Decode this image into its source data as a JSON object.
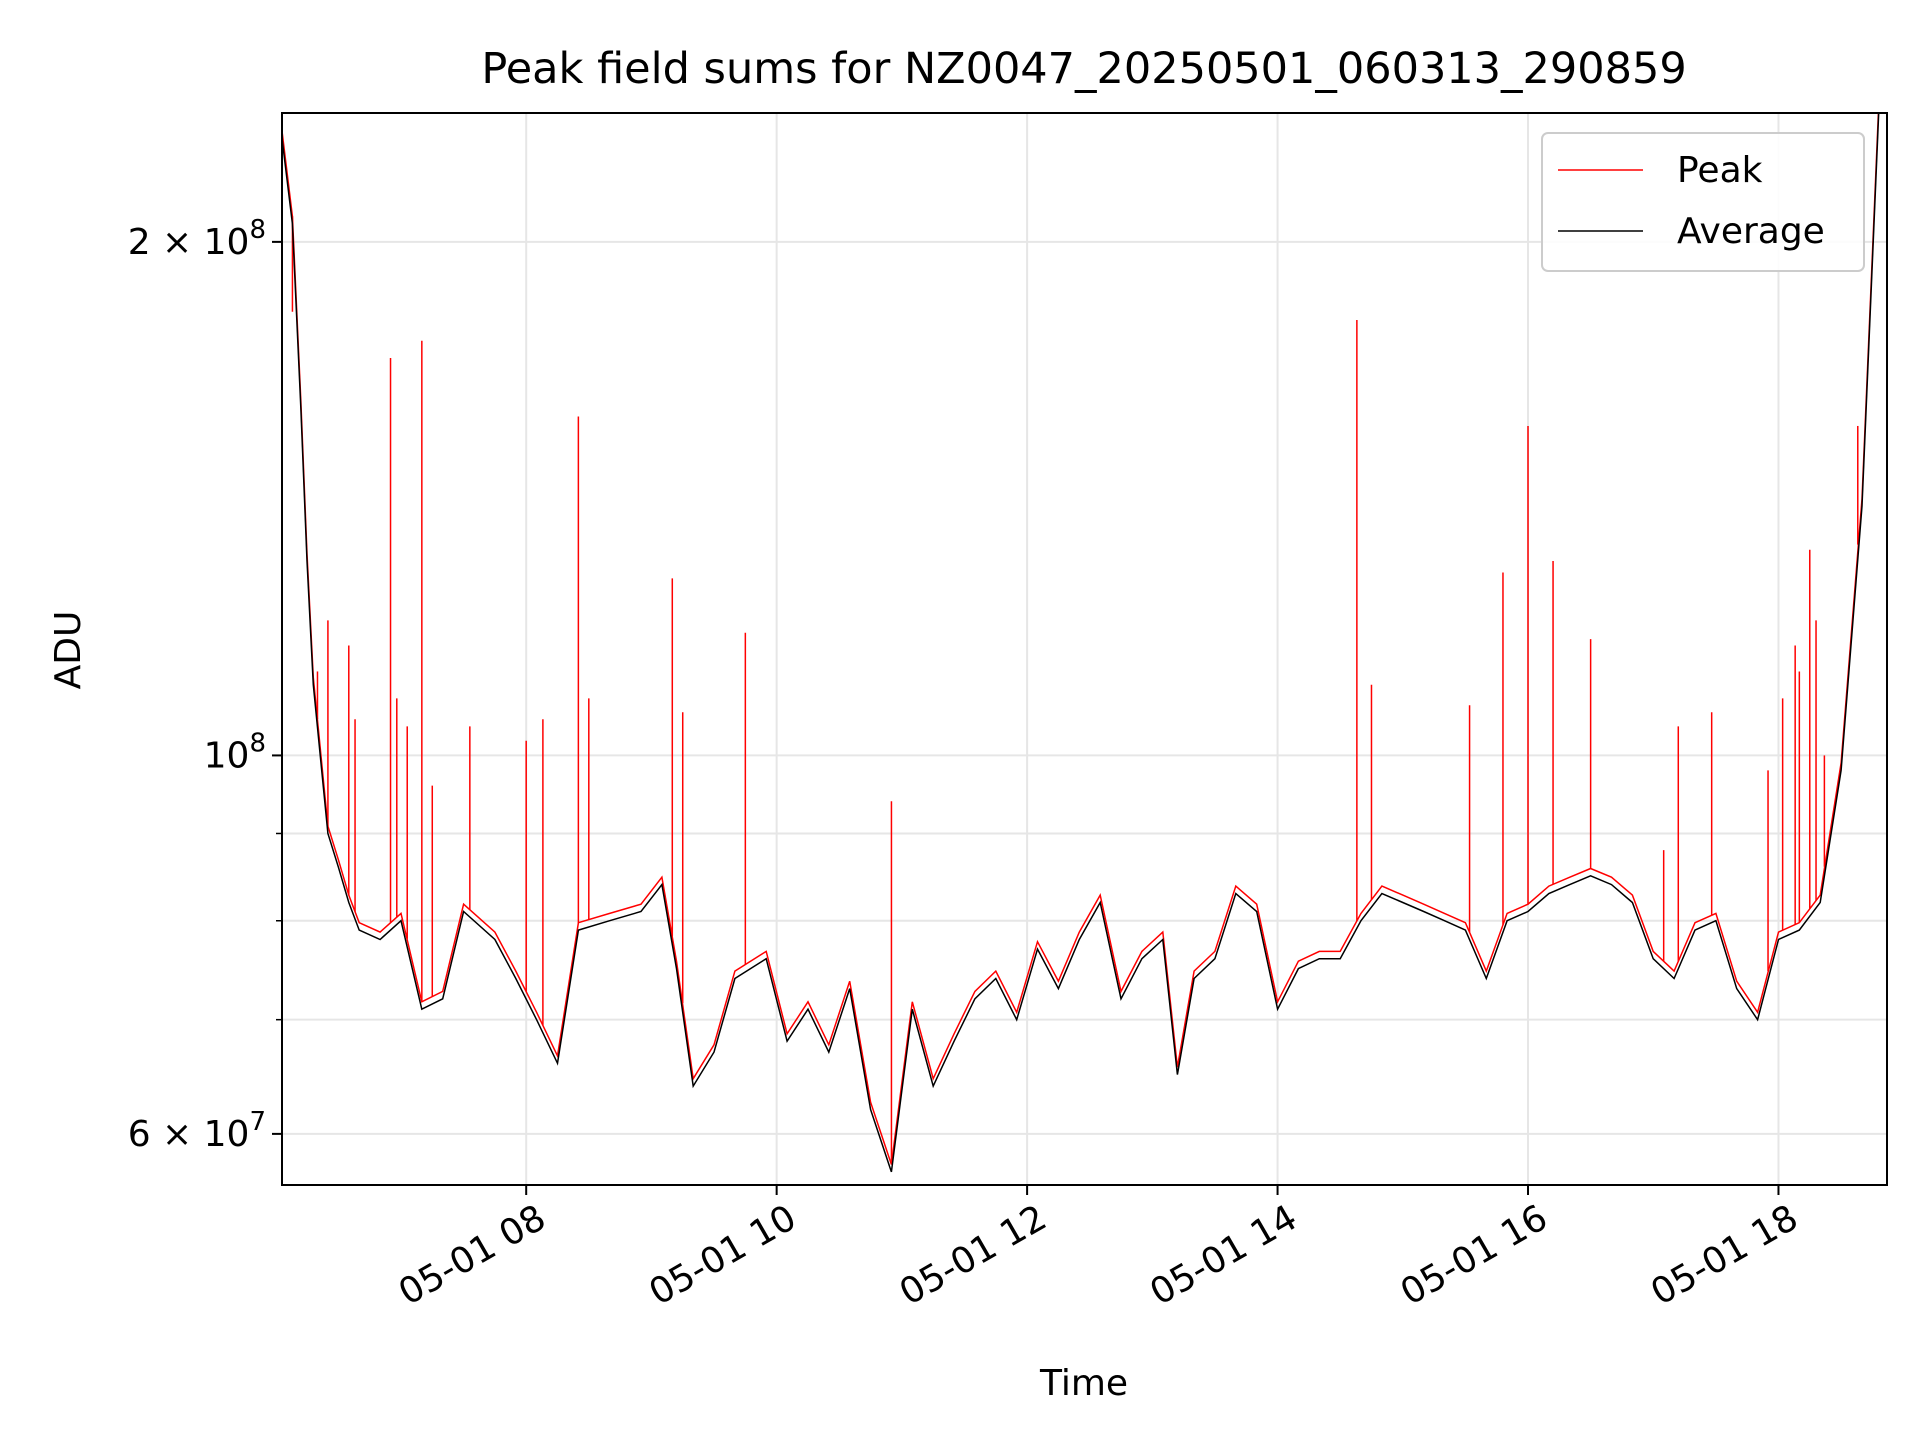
{
  "chart_data": {
    "type": "line",
    "title": "Peak field sums for NZ0047_20250501_060313_290859",
    "xlabel": "Time",
    "ylabel": "ADU",
    "yscale": "log",
    "xlim": [
      "2025-05-01 06:03",
      "2025-05-01 18:52"
    ],
    "ylim": [
      56000000,
      238000000
    ],
    "x_ticks": [
      {
        "value": "2025-05-01 08:00",
        "label": "05-01 08"
      },
      {
        "value": "2025-05-01 10:00",
        "label": "05-01 10"
      },
      {
        "value": "2025-05-01 12:00",
        "label": "05-01 12"
      },
      {
        "value": "2025-05-01 14:00",
        "label": "05-01 14"
      },
      {
        "value": "2025-05-01 16:00",
        "label": "05-01 16"
      },
      {
        "value": "2025-05-01 18:00",
        "label": "05-01 18"
      }
    ],
    "y_major_ticks": [
      {
        "value": 60000000,
        "base": "6 × 10",
        "exp": "7"
      },
      {
        "value": 100000000,
        "base": "10",
        "exp": "8"
      },
      {
        "value": 200000000,
        "base": "2 × 10",
        "exp": "8"
      }
    ],
    "y_minor_ticks": [
      70000000,
      80000000,
      90000000
    ],
    "grid": true,
    "legend_position": "top-right",
    "colors": {
      "peak": "#ff0000",
      "average": "#000000",
      "grid": "#e6e6e6"
    },
    "series": [
      {
        "name": "Average",
        "color": "#000000",
        "points": [
          [
            "2025-05-01 06:03",
            230000000
          ],
          [
            "2025-05-01 06:08",
            205000000
          ],
          [
            "2025-05-01 06:12",
            160000000
          ],
          [
            "2025-05-01 06:15",
            130000000
          ],
          [
            "2025-05-01 06:18",
            110000000
          ],
          [
            "2025-05-01 06:22",
            98000000
          ],
          [
            "2025-05-01 06:25",
            90000000
          ],
          [
            "2025-05-01 06:30",
            86000000
          ],
          [
            "2025-05-01 06:35",
            82000000
          ],
          [
            "2025-05-01 06:40",
            79000000
          ],
          [
            "2025-05-01 06:50",
            78000000
          ],
          [
            "2025-05-01 07:00",
            80000000
          ],
          [
            "2025-05-01 07:10",
            71000000
          ],
          [
            "2025-05-01 07:20",
            72000000
          ],
          [
            "2025-05-01 07:30",
            81000000
          ],
          [
            "2025-05-01 07:45",
            78000000
          ],
          [
            "2025-05-01 07:55",
            74000000
          ],
          [
            "2025-05-01 08:05",
            70000000
          ],
          [
            "2025-05-01 08:15",
            66000000
          ],
          [
            "2025-05-01 08:25",
            79000000
          ],
          [
            "2025-05-01 08:40",
            80000000
          ],
          [
            "2025-05-01 08:55",
            81000000
          ],
          [
            "2025-05-01 09:05",
            84000000
          ],
          [
            "2025-05-01 09:12",
            75000000
          ],
          [
            "2025-05-01 09:20",
            64000000
          ],
          [
            "2025-05-01 09:30",
            67000000
          ],
          [
            "2025-05-01 09:40",
            74000000
          ],
          [
            "2025-05-01 09:55",
            76000000
          ],
          [
            "2025-05-01 10:05",
            68000000
          ],
          [
            "2025-05-01 10:15",
            71000000
          ],
          [
            "2025-05-01 10:25",
            67000000
          ],
          [
            "2025-05-01 10:35",
            73000000
          ],
          [
            "2025-05-01 10:45",
            62000000
          ],
          [
            "2025-05-01 10:55",
            57000000
          ],
          [
            "2025-05-01 11:05",
            71000000
          ],
          [
            "2025-05-01 11:15",
            64000000
          ],
          [
            "2025-05-01 11:25",
            68000000
          ],
          [
            "2025-05-01 11:35",
            72000000
          ],
          [
            "2025-05-01 11:45",
            74000000
          ],
          [
            "2025-05-01 11:55",
            70000000
          ],
          [
            "2025-05-01 12:05",
            77000000
          ],
          [
            "2025-05-01 12:15",
            73000000
          ],
          [
            "2025-05-01 12:25",
            78000000
          ],
          [
            "2025-05-01 12:35",
            82000000
          ],
          [
            "2025-05-01 12:45",
            72000000
          ],
          [
            "2025-05-01 12:55",
            76000000
          ],
          [
            "2025-05-01 13:05",
            78000000
          ],
          [
            "2025-05-01 13:12",
            65000000
          ],
          [
            "2025-05-01 13:20",
            74000000
          ],
          [
            "2025-05-01 13:30",
            76000000
          ],
          [
            "2025-05-01 13:40",
            83000000
          ],
          [
            "2025-05-01 13:50",
            81000000
          ],
          [
            "2025-05-01 14:00",
            71000000
          ],
          [
            "2025-05-01 14:10",
            75000000
          ],
          [
            "2025-05-01 14:20",
            76000000
          ],
          [
            "2025-05-01 14:30",
            76000000
          ],
          [
            "2025-05-01 14:40",
            80000000
          ],
          [
            "2025-05-01 14:50",
            83000000
          ],
          [
            "2025-05-01 15:00",
            82000000
          ],
          [
            "2025-05-01 15:10",
            81000000
          ],
          [
            "2025-05-01 15:20",
            80000000
          ],
          [
            "2025-05-01 15:30",
            79000000
          ],
          [
            "2025-05-01 15:40",
            74000000
          ],
          [
            "2025-05-01 15:50",
            80000000
          ],
          [
            "2025-05-01 16:00",
            81000000
          ],
          [
            "2025-05-01 16:10",
            83000000
          ],
          [
            "2025-05-01 16:20",
            84000000
          ],
          [
            "2025-05-01 16:30",
            85000000
          ],
          [
            "2025-05-01 16:40",
            84000000
          ],
          [
            "2025-05-01 16:50",
            82000000
          ],
          [
            "2025-05-01 17:00",
            76000000
          ],
          [
            "2025-05-01 17:10",
            74000000
          ],
          [
            "2025-05-01 17:20",
            79000000
          ],
          [
            "2025-05-01 17:30",
            80000000
          ],
          [
            "2025-05-01 17:40",
            73000000
          ],
          [
            "2025-05-01 17:50",
            70000000
          ],
          [
            "2025-05-01 18:00",
            78000000
          ],
          [
            "2025-05-01 18:10",
            79000000
          ],
          [
            "2025-05-01 18:20",
            82000000
          ],
          [
            "2025-05-01 18:30",
            98000000
          ],
          [
            "2025-05-01 18:40",
            140000000
          ],
          [
            "2025-05-01 18:48",
            238000000
          ]
        ]
      },
      {
        "name": "Peak",
        "color": "#ff0000",
        "baseline": "Average",
        "offset_factor": 1.01,
        "spikes": [
          [
            "2025-05-01 06:08",
            182000000
          ],
          [
            "2025-05-01 06:20",
            112000000
          ],
          [
            "2025-05-01 06:25",
            120000000
          ],
          [
            "2025-05-01 06:35",
            116000000
          ],
          [
            "2025-05-01 06:38",
            105000000
          ],
          [
            "2025-05-01 06:55",
            171000000
          ],
          [
            "2025-05-01 06:58",
            108000000
          ],
          [
            "2025-05-01 07:03",
            104000000
          ],
          [
            "2025-05-01 07:10",
            175000000
          ],
          [
            "2025-05-01 07:15",
            96000000
          ],
          [
            "2025-05-01 07:33",
            104000000
          ],
          [
            "2025-05-01 08:00",
            102000000
          ],
          [
            "2025-05-01 08:08",
            105000000
          ],
          [
            "2025-05-01 08:25",
            158000000
          ],
          [
            "2025-05-01 08:30",
            108000000
          ],
          [
            "2025-05-01 09:10",
            127000000
          ],
          [
            "2025-05-01 09:15",
            106000000
          ],
          [
            "2025-05-01 09:45",
            118000000
          ],
          [
            "2025-05-01 10:55",
            94000000
          ],
          [
            "2025-05-01 14:38",
            180000000
          ],
          [
            "2025-05-01 14:45",
            110000000
          ],
          [
            "2025-05-01 15:32",
            107000000
          ],
          [
            "2025-05-01 15:48",
            128000000
          ],
          [
            "2025-05-01 16:00",
            156000000
          ],
          [
            "2025-05-01 16:12",
            130000000
          ],
          [
            "2025-05-01 16:30",
            117000000
          ],
          [
            "2025-05-01 17:05",
            88000000
          ],
          [
            "2025-05-01 17:12",
            104000000
          ],
          [
            "2025-05-01 17:28",
            106000000
          ],
          [
            "2025-05-01 17:55",
            98000000
          ],
          [
            "2025-05-01 18:02",
            108000000
          ],
          [
            "2025-05-01 18:08",
            116000000
          ],
          [
            "2025-05-01 18:10",
            112000000
          ],
          [
            "2025-05-01 18:15",
            132000000
          ],
          [
            "2025-05-01 18:18",
            120000000
          ],
          [
            "2025-05-01 18:22",
            100000000
          ],
          [
            "2025-05-01 18:38",
            156000000
          ]
        ]
      }
    ]
  }
}
